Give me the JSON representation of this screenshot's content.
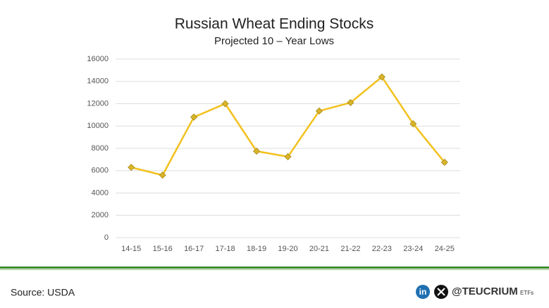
{
  "chart_data": {
    "type": "line",
    "title": "Russian Wheat Ending Stocks",
    "subtitle": "Projected 10 – Year Lows",
    "categories": [
      "14-15",
      "15-16",
      "16-17",
      "17-18",
      "18-19",
      "19-20",
      "20-21",
      "21-22",
      "22-23",
      "23-24",
      "24-25"
    ],
    "values": [
      6300,
      5600,
      10800,
      12000,
      7750,
      7250,
      11350,
      12100,
      14400,
      10200,
      6750
    ],
    "color": "#f2c11d",
    "marker_color": "#d9b42a",
    "ylim": [
      0,
      16000
    ],
    "yticks": [
      0,
      2000,
      4000,
      6000,
      8000,
      10000,
      12000,
      14000,
      16000
    ],
    "grid": true
  },
  "footer": {
    "source": "Source: USDA",
    "linkedin": "in",
    "handle": "@TEUCRIUM",
    "handle_suffix": "ETFs"
  }
}
